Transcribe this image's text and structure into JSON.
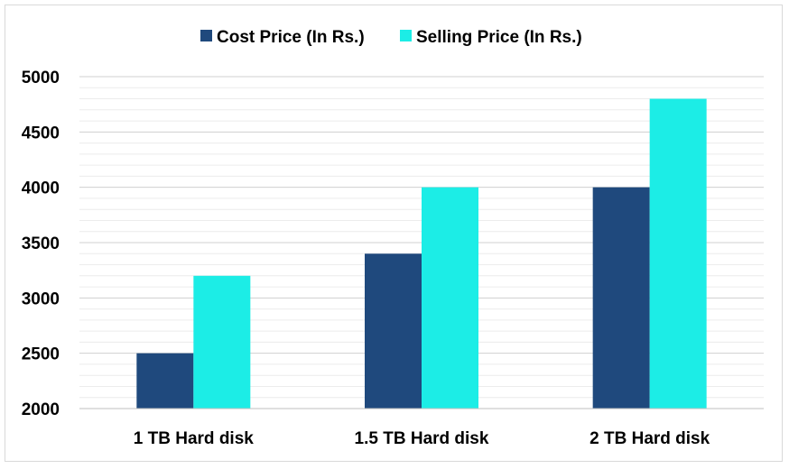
{
  "chart_data": {
    "type": "bar",
    "title": "",
    "xlabel": "",
    "ylabel": "",
    "categories": [
      "1 TB Hard disk",
      "1.5 TB Hard disk",
      "2 TB Hard disk"
    ],
    "series": [
      {
        "name": "Cost Price (In Rs.)",
        "values": [
          2500,
          3400,
          4000
        ],
        "color": "#1f497d"
      },
      {
        "name": "Selling Price (In Rs.)",
        "values": [
          3200,
          4000,
          4800
        ],
        "color": "#1cede6"
      }
    ],
    "ylim": [
      2000,
      5000
    ],
    "yticks": [
      2000,
      2500,
      3000,
      3500,
      4000,
      4500,
      5000
    ],
    "ytick_labels": [
      "2000",
      "2500",
      "3000",
      "3500",
      "4000",
      "4500",
      "5000"
    ],
    "minor_grid_step": 100,
    "grid": true,
    "legend_position": "top-center"
  }
}
